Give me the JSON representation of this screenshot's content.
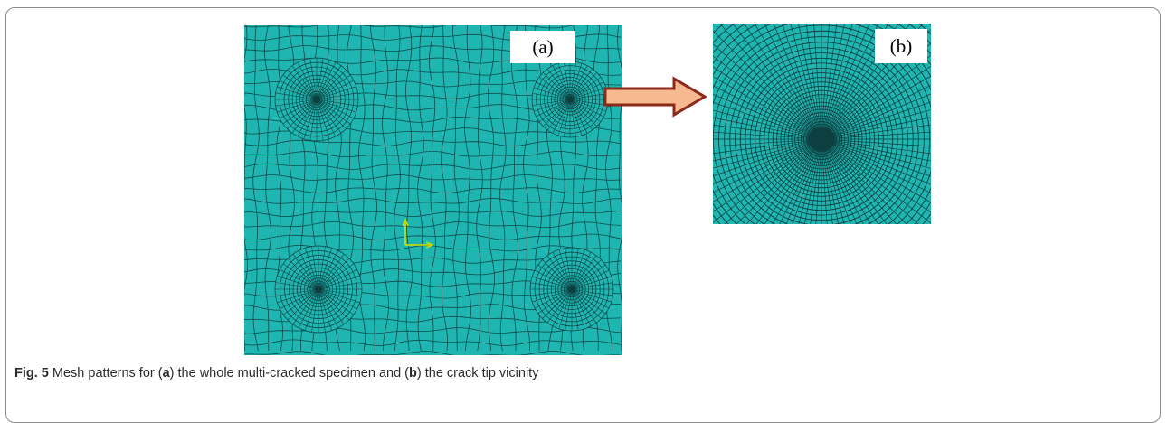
{
  "figure": {
    "panel_a_label": "(a)",
    "panel_b_label": "(b)",
    "caption": {
      "label": "Fig. 5",
      "text_1": " Mesh patterns for (",
      "ref_a": "a",
      "text_2": ") the whole multi-cracked specimen and (",
      "ref_b": "b",
      "text_3": ") the crack tip vicinity"
    }
  },
  "colors": {
    "mesh_fill": "#1fb5b0",
    "mesh_line": "#0e3f40",
    "highlight_box": "#f0f000",
    "arrow_fill": "#f7b98f",
    "arrow_stroke": "#8b2a1a",
    "axis_triad": "#d7e000"
  },
  "icons": [
    "zoom-highlight-box",
    "zoom-arrow-icon",
    "axis-triad-icon",
    "crack-tip-marker"
  ]
}
